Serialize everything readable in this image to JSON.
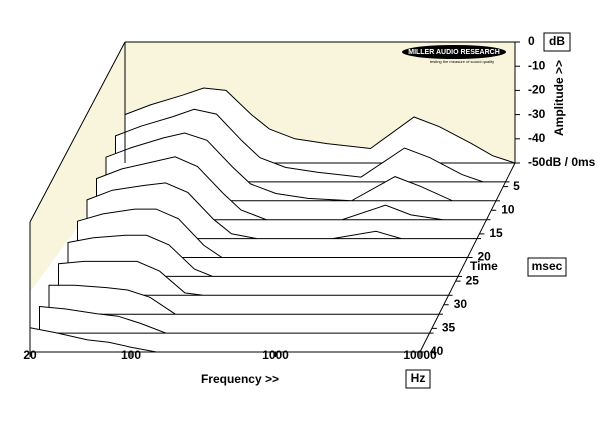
{
  "chart_data": {
    "type": "waterfall",
    "logo": "MILLER AUDIO RESEARCH",
    "tagline": "testing the measure of sound quality",
    "xlabel": "Frequency >>",
    "xunit": "Hz",
    "ylabel": "Amplitude >>",
    "yunit": "dB",
    "tlabel": "Time",
    "tunit": "msec",
    "xscale": "log",
    "xlim": [
      20,
      10000
    ],
    "xticks": [
      20,
      100,
      1000,
      10000
    ],
    "ylim": [
      -50,
      0
    ],
    "yticks": [
      0,
      -10,
      -20,
      -30,
      -40,
      {
        "value": -50,
        "label": "-50dB / 0ms"
      }
    ],
    "tlim": [
      0,
      40
    ],
    "tticks": [
      5,
      10,
      15,
      20,
      25,
      30,
      35,
      40
    ],
    "panel_color": "#f9f5dd",
    "line_color": "#000000",
    "x": [
      20,
      30,
      50,
      70,
      100,
      150,
      200,
      300,
      500,
      1000,
      2000,
      3000,
      5000,
      7000,
      10000
    ],
    "slices": [
      {
        "time": 0,
        "values": [
          -30,
          -26,
          -22,
          -19,
          -20,
          -30,
          -36,
          -40,
          -42,
          -44,
          -31,
          -35,
          -42,
          -47,
          -50
        ]
      },
      {
        "time": 4,
        "values": [
          -31,
          -27,
          -23,
          -20,
          -22,
          -33,
          -40,
          -44,
          -46,
          -48,
          -36,
          -40,
          -47,
          -50,
          -50
        ]
      },
      {
        "time": 8,
        "values": [
          -32,
          -28,
          -24,
          -22,
          -25,
          -36,
          -43,
          -47,
          -49,
          -50,
          -40,
          -44,
          -50,
          -50,
          -50
        ]
      },
      {
        "time": 12,
        "values": [
          -33,
          -29,
          -26,
          -24,
          -28,
          -39,
          -46,
          -50,
          -50,
          -50,
          -44,
          -48,
          -50,
          -50,
          -50
        ]
      },
      {
        "time": 16,
        "values": [
          -34,
          -30,
          -28,
          -27,
          -31,
          -42,
          -48,
          -50,
          -50,
          -50,
          -47,
          -50,
          -50,
          -50,
          -50
        ]
      },
      {
        "time": 20,
        "values": [
          -35,
          -32,
          -30,
          -30,
          -34,
          -45,
          -50,
          -50,
          -50,
          -50,
          -50,
          -50,
          -50,
          -50,
          -50
        ]
      },
      {
        "time": 24,
        "values": [
          -36,
          -34,
          -33,
          -33,
          -37,
          -47,
          -50,
          -50,
          -50,
          -50,
          -50,
          -50,
          -50,
          -50,
          -50
        ]
      },
      {
        "time": 28,
        "values": [
          -37,
          -36,
          -36,
          -36,
          -40,
          -49,
          -50,
          -50,
          -50,
          -50,
          -50,
          -50,
          -50,
          -50,
          -50
        ]
      },
      {
        "time": 32,
        "values": [
          -38,
          -38,
          -39,
          -40,
          -43,
          -50,
          -50,
          -50,
          -50,
          -50,
          -50,
          -50,
          -50,
          -50,
          -50
        ]
      },
      {
        "time": 36,
        "values": [
          -39,
          -40,
          -42,
          -43,
          -46,
          -50,
          -50,
          -50,
          -50,
          -50,
          -50,
          -50,
          -50,
          -50,
          -50
        ]
      },
      {
        "time": 40,
        "values": [
          -40,
          -42,
          -45,
          -46,
          -48,
          -50,
          -50,
          -50,
          -50,
          -50,
          -50,
          -50,
          -50,
          -50,
          -50
        ]
      }
    ]
  }
}
